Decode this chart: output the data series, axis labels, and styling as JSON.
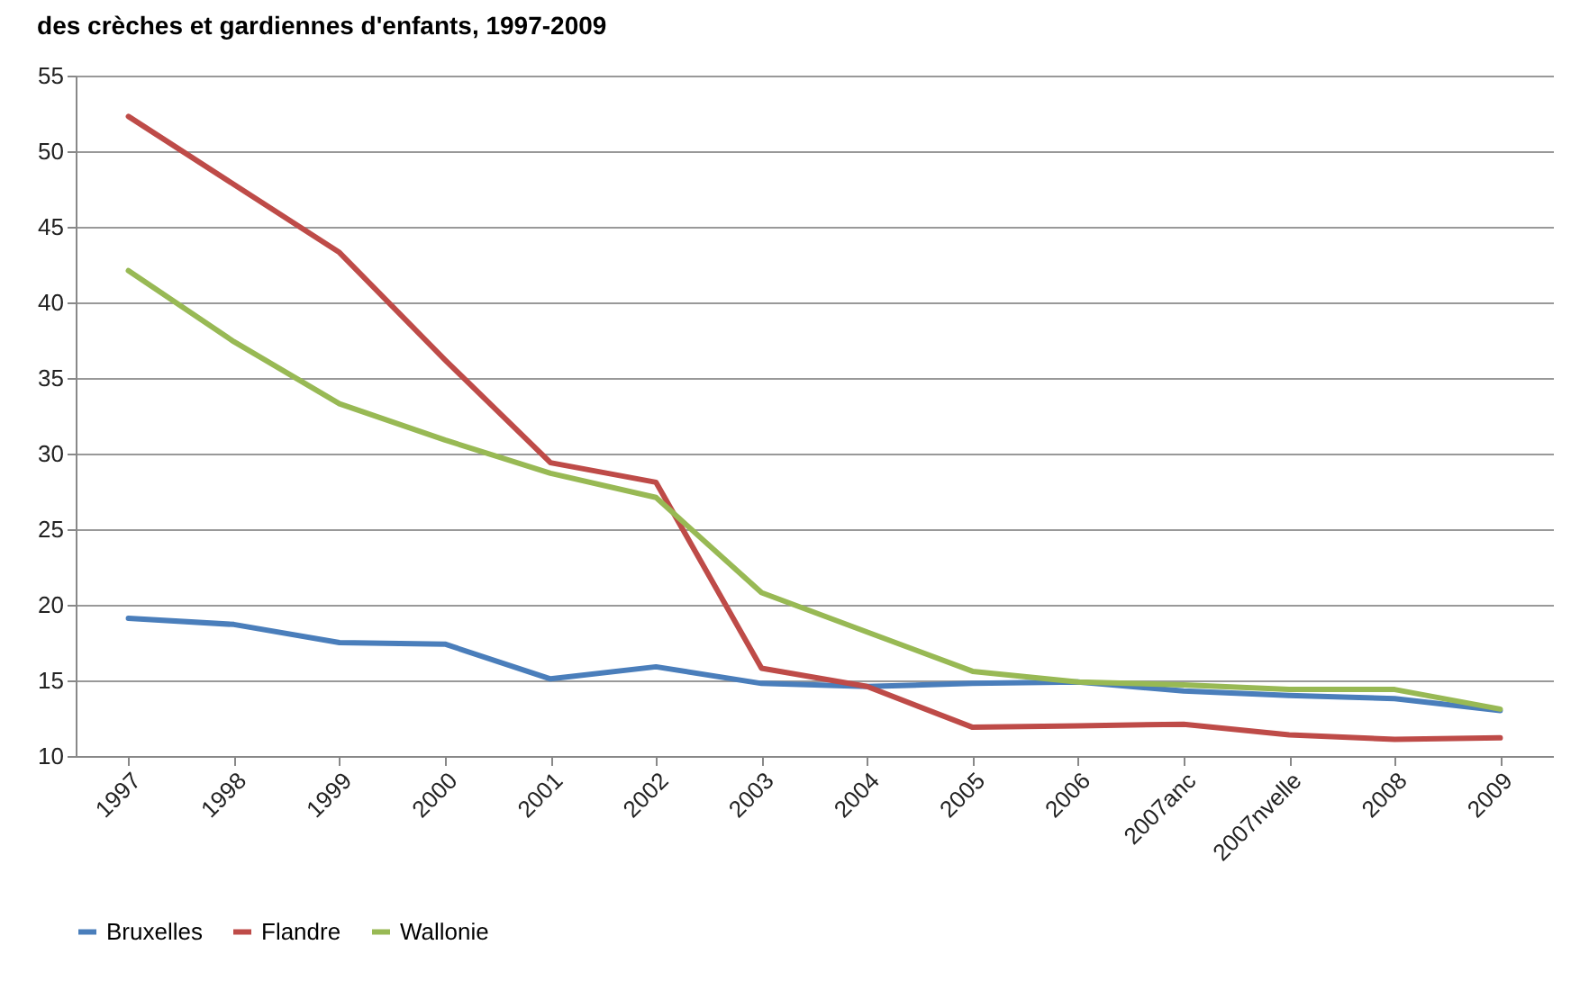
{
  "chart_data": {
    "type": "line",
    "title": "des crèches et gardiennes d'enfants, 1997-2009",
    "categories": [
      "1997",
      "1998",
      "1999",
      "2000",
      "2001",
      "2002",
      "2003",
      "2004",
      "2005",
      "2006",
      "2007anc",
      "2007nvelle",
      "2008",
      "2009"
    ],
    "series": [
      {
        "name": "Bruxelles",
        "color": "#4a7ebb",
        "values": [
          19.1,
          18.7,
          17.5,
          17.4,
          15.1,
          15.9,
          14.8,
          14.6,
          14.8,
          14.9,
          14.3,
          14.0,
          13.8,
          13.0
        ]
      },
      {
        "name": "Flandre",
        "color": "#be4b48",
        "values": [
          52.3,
          47.8,
          43.3,
          36.2,
          29.4,
          28.1,
          15.8,
          14.6,
          11.9,
          12.0,
          12.1,
          11.4,
          11.1,
          11.2
        ]
      },
      {
        "name": "Wallonie",
        "color": "#98b954",
        "values": [
          42.1,
          37.4,
          33.3,
          30.9,
          28.7,
          27.1,
          20.8,
          18.2,
          15.6,
          14.9,
          14.7,
          14.4,
          14.4,
          13.1
        ]
      }
    ],
    "ylim": [
      10,
      55
    ],
    "yticks": [
      10,
      15,
      20,
      25,
      30,
      35,
      40,
      45,
      50,
      55
    ],
    "grid": "y",
    "legend": "bottom"
  }
}
